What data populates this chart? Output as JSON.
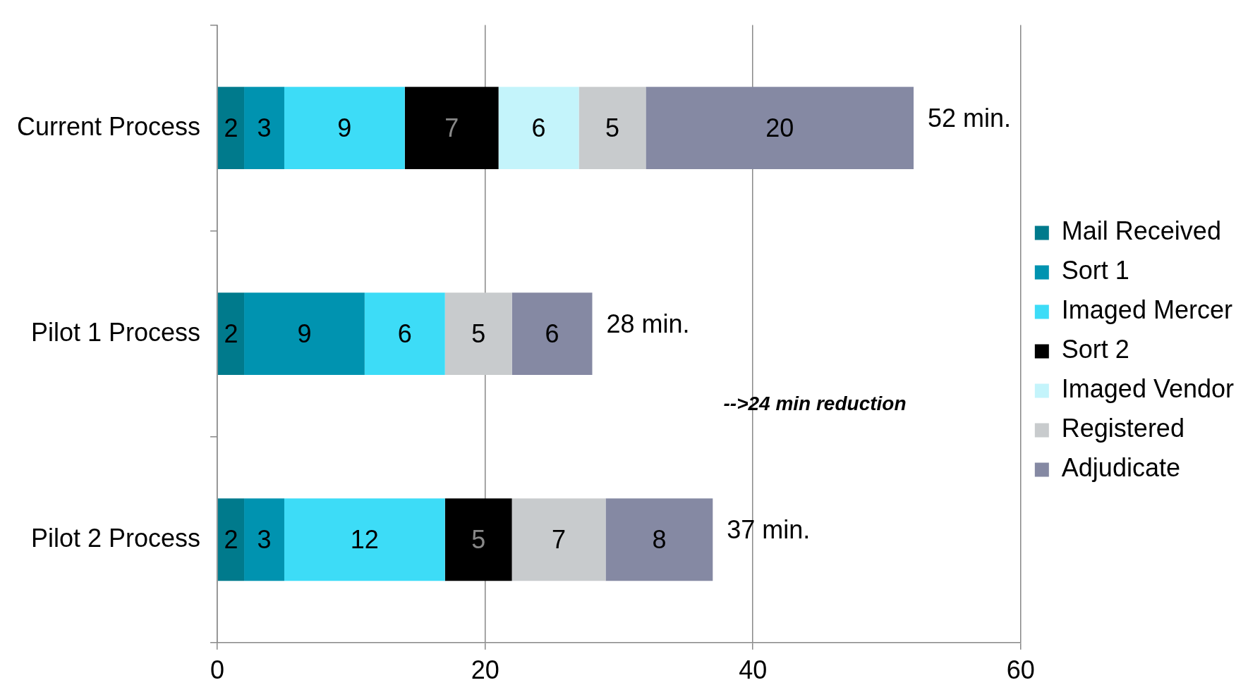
{
  "chart_data": {
    "type": "bar",
    "orientation": "horizontal",
    "stacked": true,
    "categories": [
      "Current Process",
      "Pilot 1 Process",
      "Pilot 2 Process"
    ],
    "series": [
      {
        "name": "Mail Received",
        "color": "#007a8c",
        "values": [
          2,
          2,
          2
        ]
      },
      {
        "name": "Sort 1",
        "color": "#0093b0",
        "values": [
          3,
          9,
          3
        ]
      },
      {
        "name": "Imaged Mercer",
        "color": "#3ddcf7",
        "values": [
          9,
          6,
          12
        ]
      },
      {
        "name": "Sort 2",
        "color": "#000000",
        "values": [
          7,
          null,
          5
        ]
      },
      {
        "name": "Imaged Vendor",
        "color": "#c4f4fb",
        "values": [
          6,
          null,
          null
        ]
      },
      {
        "name": "Registered",
        "color": "#c8cbcd",
        "values": [
          5,
          5,
          7
        ]
      },
      {
        "name": "Adjudicate",
        "color": "#8589a3",
        "values": [
          20,
          6,
          8
        ]
      }
    ],
    "xlim": [
      0,
      60
    ],
    "xticks": [
      0,
      20,
      40,
      60
    ],
    "grid": "x",
    "legend": "right",
    "data_labels": true,
    "totals": [
      "52 min.",
      "28 min.",
      "37 min."
    ],
    "annotations": [
      "-->24 min reduction"
    ]
  }
}
